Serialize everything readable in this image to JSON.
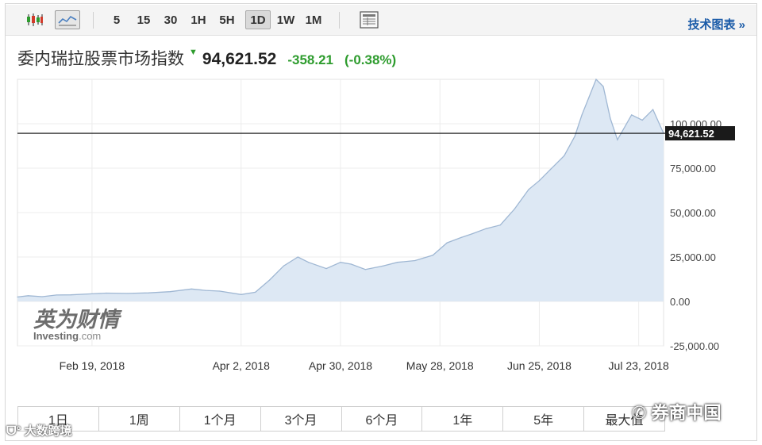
{
  "toolbar": {
    "intervals": [
      "5",
      "15",
      "30",
      "1H",
      "5H",
      "1D",
      "1W",
      "1M"
    ],
    "active_interval": "1D",
    "icons": [
      "candlestick-chart-icon",
      "line-chart-icon",
      "table-view-icon"
    ],
    "tech_chart_link": "技术图表 »"
  },
  "header": {
    "name": "委内瑞拉股票市场指数",
    "direction_icon": "down-triangle-icon",
    "price": "94,621.52",
    "change": "-358.21",
    "change_pct": "(-0.38%)",
    "change_color": "#2e9c2e"
  },
  "watermark": {
    "brand_cn": "英为财情",
    "brand_en_main": "Investing",
    "brand_en_suffix": ".com",
    "overlay_left": "大数跨境",
    "overlay_right": "券商中国"
  },
  "period_tabs": [
    "1日",
    "1周",
    "1个月",
    "3个月",
    "6个月",
    "1年",
    "5年",
    "最大值"
  ],
  "chart_data": {
    "type": "area",
    "current_value": 94621.52,
    "current_label": "94,621.52",
    "ylim": [
      -25000,
      125000
    ],
    "y_ticks": [
      -25000,
      0,
      25000,
      50000,
      75000,
      100000
    ],
    "y_tick_labels": [
      "-25,000.00",
      "0.00",
      "25,000.00",
      "50,000.00",
      "75,000.00",
      "100,000.00"
    ],
    "x_ticks": [
      "2018-02-19",
      "2018-04-02",
      "2018-04-30",
      "2018-05-28",
      "2018-06-25",
      "2018-07-23"
    ],
    "x_tick_labels": [
      "Feb 19, 2018",
      "Apr 2, 2018",
      "Apr 30, 2018",
      "May 28, 2018",
      "Jun 25, 2018",
      "Jul 23, 2018"
    ],
    "x": [
      "2018-01-29",
      "2018-02-01",
      "2018-02-05",
      "2018-02-09",
      "2018-02-13",
      "2018-02-19",
      "2018-02-23",
      "2018-03-01",
      "2018-03-07",
      "2018-03-13",
      "2018-03-19",
      "2018-03-23",
      "2018-03-27",
      "2018-04-02",
      "2018-04-06",
      "2018-04-10",
      "2018-04-14",
      "2018-04-18",
      "2018-04-21",
      "2018-04-26",
      "2018-04-30",
      "2018-05-03",
      "2018-05-07",
      "2018-05-12",
      "2018-05-16",
      "2018-05-21",
      "2018-05-26",
      "2018-05-30",
      "2018-06-03",
      "2018-06-06",
      "2018-06-10",
      "2018-06-14",
      "2018-06-18",
      "2018-06-22",
      "2018-06-25",
      "2018-06-28",
      "2018-07-02",
      "2018-07-05",
      "2018-07-07",
      "2018-07-09",
      "2018-07-11",
      "2018-07-13",
      "2018-07-15",
      "2018-07-17",
      "2018-07-21",
      "2018-07-24",
      "2018-07-27",
      "2018-07-30"
    ],
    "y": [
      2500,
      3200,
      2700,
      3600,
      3700,
      4300,
      4700,
      4500,
      4800,
      5500,
      7000,
      6200,
      5800,
      3900,
      5200,
      12000,
      20000,
      25000,
      22000,
      18500,
      22000,
      21000,
      18000,
      20000,
      22000,
      23000,
      26000,
      33000,
      36000,
      38000,
      41000,
      43000,
      52000,
      63000,
      68000,
      74000,
      82000,
      93000,
      105000,
      115000,
      125000,
      121000,
      103000,
      91000,
      105000,
      102000,
      108000,
      94621.52
    ],
    "grid": true,
    "legend": "none",
    "line_color": "#9fb7d3",
    "fill_color": "#dde8f4",
    "current_line_color": "#000000"
  }
}
